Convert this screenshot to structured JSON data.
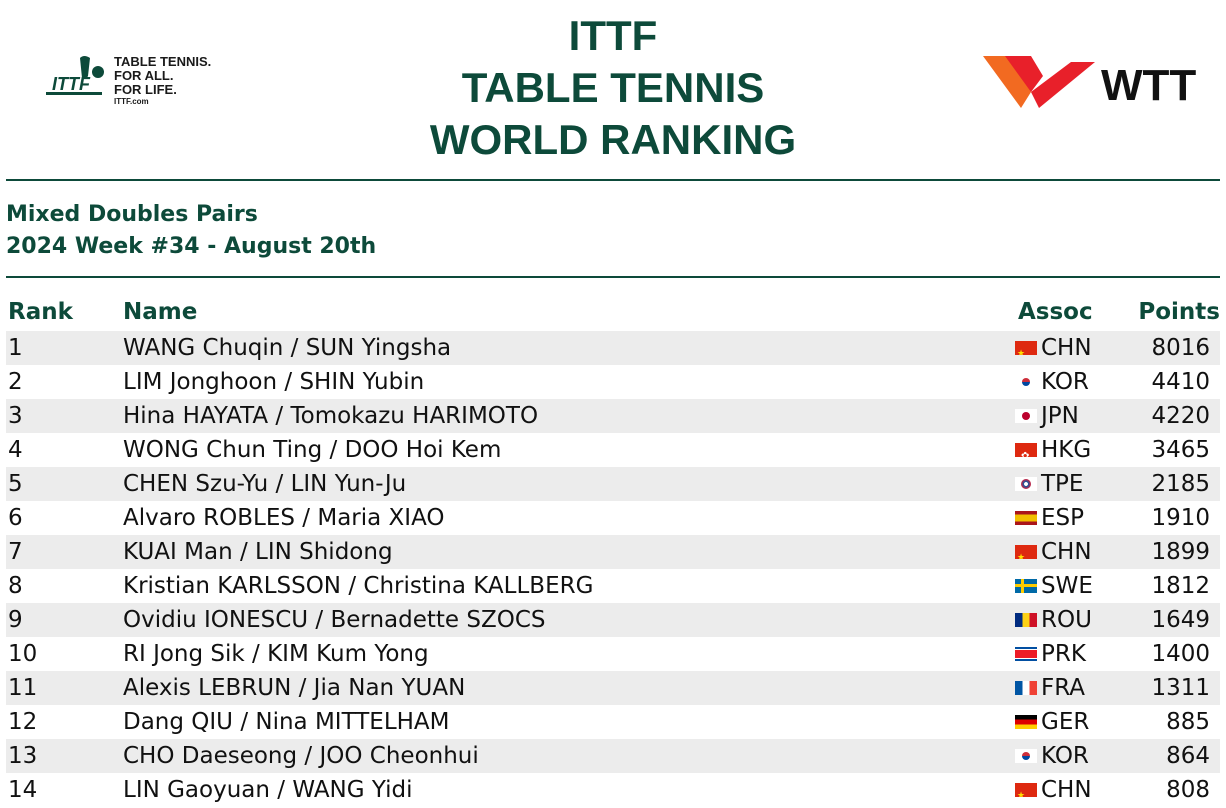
{
  "header": {
    "title_line1": "ITTF",
    "title_line2": "TABLE TENNIS",
    "title_line3": "WORLD RANKING",
    "ittf_tagline_1": "TABLE TENNIS.",
    "ittf_tagline_2": "FOR ALL.",
    "ittf_tagline_3": "FOR LIFE.",
    "ittf_url": "ITTF.com",
    "ittf_logo_text": "ITTF",
    "wtt_logo_text": "WTT"
  },
  "subtitle": {
    "category": "Mixed Doubles Pairs",
    "week": "2024 Week #34 - August 20th"
  },
  "table": {
    "headers": {
      "rank": "Rank",
      "name": "Name",
      "assoc": "Assoc",
      "points": "Points"
    },
    "rows": [
      {
        "rank": "1",
        "name": "WANG Chuqin / SUN Yingsha",
        "assoc": "CHN",
        "flag": "flag-chn",
        "points": "8016"
      },
      {
        "rank": "2",
        "name": "LIM Jonghoon / SHIN Yubin",
        "assoc": "KOR",
        "flag": "flag-kor",
        "points": "4410"
      },
      {
        "rank": "3",
        "name": "Hina HAYATA / Tomokazu HARIMOTO",
        "assoc": "JPN",
        "flag": "flag-jpn",
        "points": "4220"
      },
      {
        "rank": "4",
        "name": "WONG Chun Ting / DOO Hoi Kem",
        "assoc": "HKG",
        "flag": "flag-hkg",
        "points": "3465"
      },
      {
        "rank": "5",
        "name": "CHEN Szu-Yu / LIN Yun-Ju",
        "assoc": "TPE",
        "flag": "flag-tpe",
        "points": "2185"
      },
      {
        "rank": "6",
        "name": "Alvaro ROBLES / Maria XIAO",
        "assoc": "ESP",
        "flag": "flag-esp",
        "points": "1910"
      },
      {
        "rank": "7",
        "name": "KUAI Man / LIN Shidong",
        "assoc": "CHN",
        "flag": "flag-chn",
        "points": "1899"
      },
      {
        "rank": "8",
        "name": "Kristian KARLSSON / Christina KALLBERG",
        "assoc": "SWE",
        "flag": "flag-swe",
        "points": "1812"
      },
      {
        "rank": "9",
        "name": "Ovidiu IONESCU / Bernadette SZOCS",
        "assoc": "ROU",
        "flag": "flag-rou",
        "points": "1649"
      },
      {
        "rank": "10",
        "name": "RI Jong Sik / KIM Kum Yong",
        "assoc": "PRK",
        "flag": "flag-prk",
        "points": "1400"
      },
      {
        "rank": "11",
        "name": "Alexis LEBRUN / Jia Nan YUAN",
        "assoc": "FRA",
        "flag": "flag-fra",
        "points": "1311"
      },
      {
        "rank": "12",
        "name": "Dang QIU / Nina MITTELHAM",
        "assoc": "GER",
        "flag": "flag-ger",
        "points": "885"
      },
      {
        "rank": "13",
        "name": "CHO Daeseong / JOO Cheonhui",
        "assoc": "KOR",
        "flag": "flag-kor",
        "points": "864"
      },
      {
        "rank": "14",
        "name": "LIN Gaoyuan / WANG Yidi",
        "assoc": "CHN",
        "flag": "flag-chn",
        "points": "808"
      }
    ]
  },
  "colors": {
    "brand_green": "#0d4a3a",
    "row_stripe": "#ececec",
    "wtt_red": "#e8202a",
    "wtt_orange": "#f26a21"
  }
}
